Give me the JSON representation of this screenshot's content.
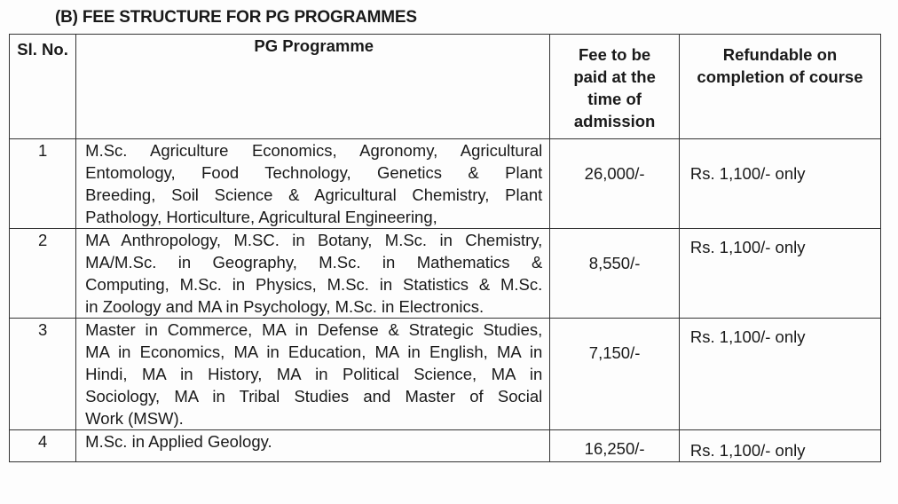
{
  "title": "(B)  FEE STRUCTURE FOR PG PROGRAMMES",
  "headers": {
    "sl_no": "Sl. No.",
    "programme": "PG Programme",
    "fee": [
      "Fee to be",
      "paid at the",
      "time of",
      "admission"
    ],
    "refundable": [
      "Refundable on",
      "completion of course"
    ]
  },
  "rows": [
    {
      "sl": "1",
      "lines": [
        "M.Sc. Agriculture Economics, Agronomy, Agricultural",
        "Entomology, Food Technology, Genetics & Plant",
        "Breeding, Soil Science & Agricultural Chemistry, Plant",
        "Pathology, Horticulture, Agricultural Engineering,"
      ],
      "fee": "26,000/-",
      "refundable": "Rs. 1,100/- only"
    },
    {
      "sl": "2",
      "lines": [
        "MA Anthropology, M.SC. in Botany, M.Sc. in Chemistry,",
        "MA/M.Sc. in Geography, M.Sc. in Mathematics &",
        "Computing, M.Sc. in Physics, M.Sc. in Statistics & M.Sc.",
        "in Zoology and MA in Psychology, M.Sc. in Electronics."
      ],
      "fee": "8,550/-",
      "refundable": "Rs. 1,100/- only"
    },
    {
      "sl": "3",
      "lines": [
        "Master in Commerce, MA in Defense & Strategic Studies,",
        "MA in Economics, MA in Education, MA in English, MA in",
        "Hindi, MA in History, MA in Political Science, MA in",
        "Sociology, MA in Tribal Studies and Master of Social",
        "Work (MSW)."
      ],
      "fee": "7,150/-",
      "refundable": "Rs. 1,100/- only"
    },
    {
      "sl": "4",
      "lines": [
        "M.Sc. in Applied Geology."
      ],
      "fee": "16,250/-",
      "refundable": "Rs. 1,100/- only"
    }
  ]
}
